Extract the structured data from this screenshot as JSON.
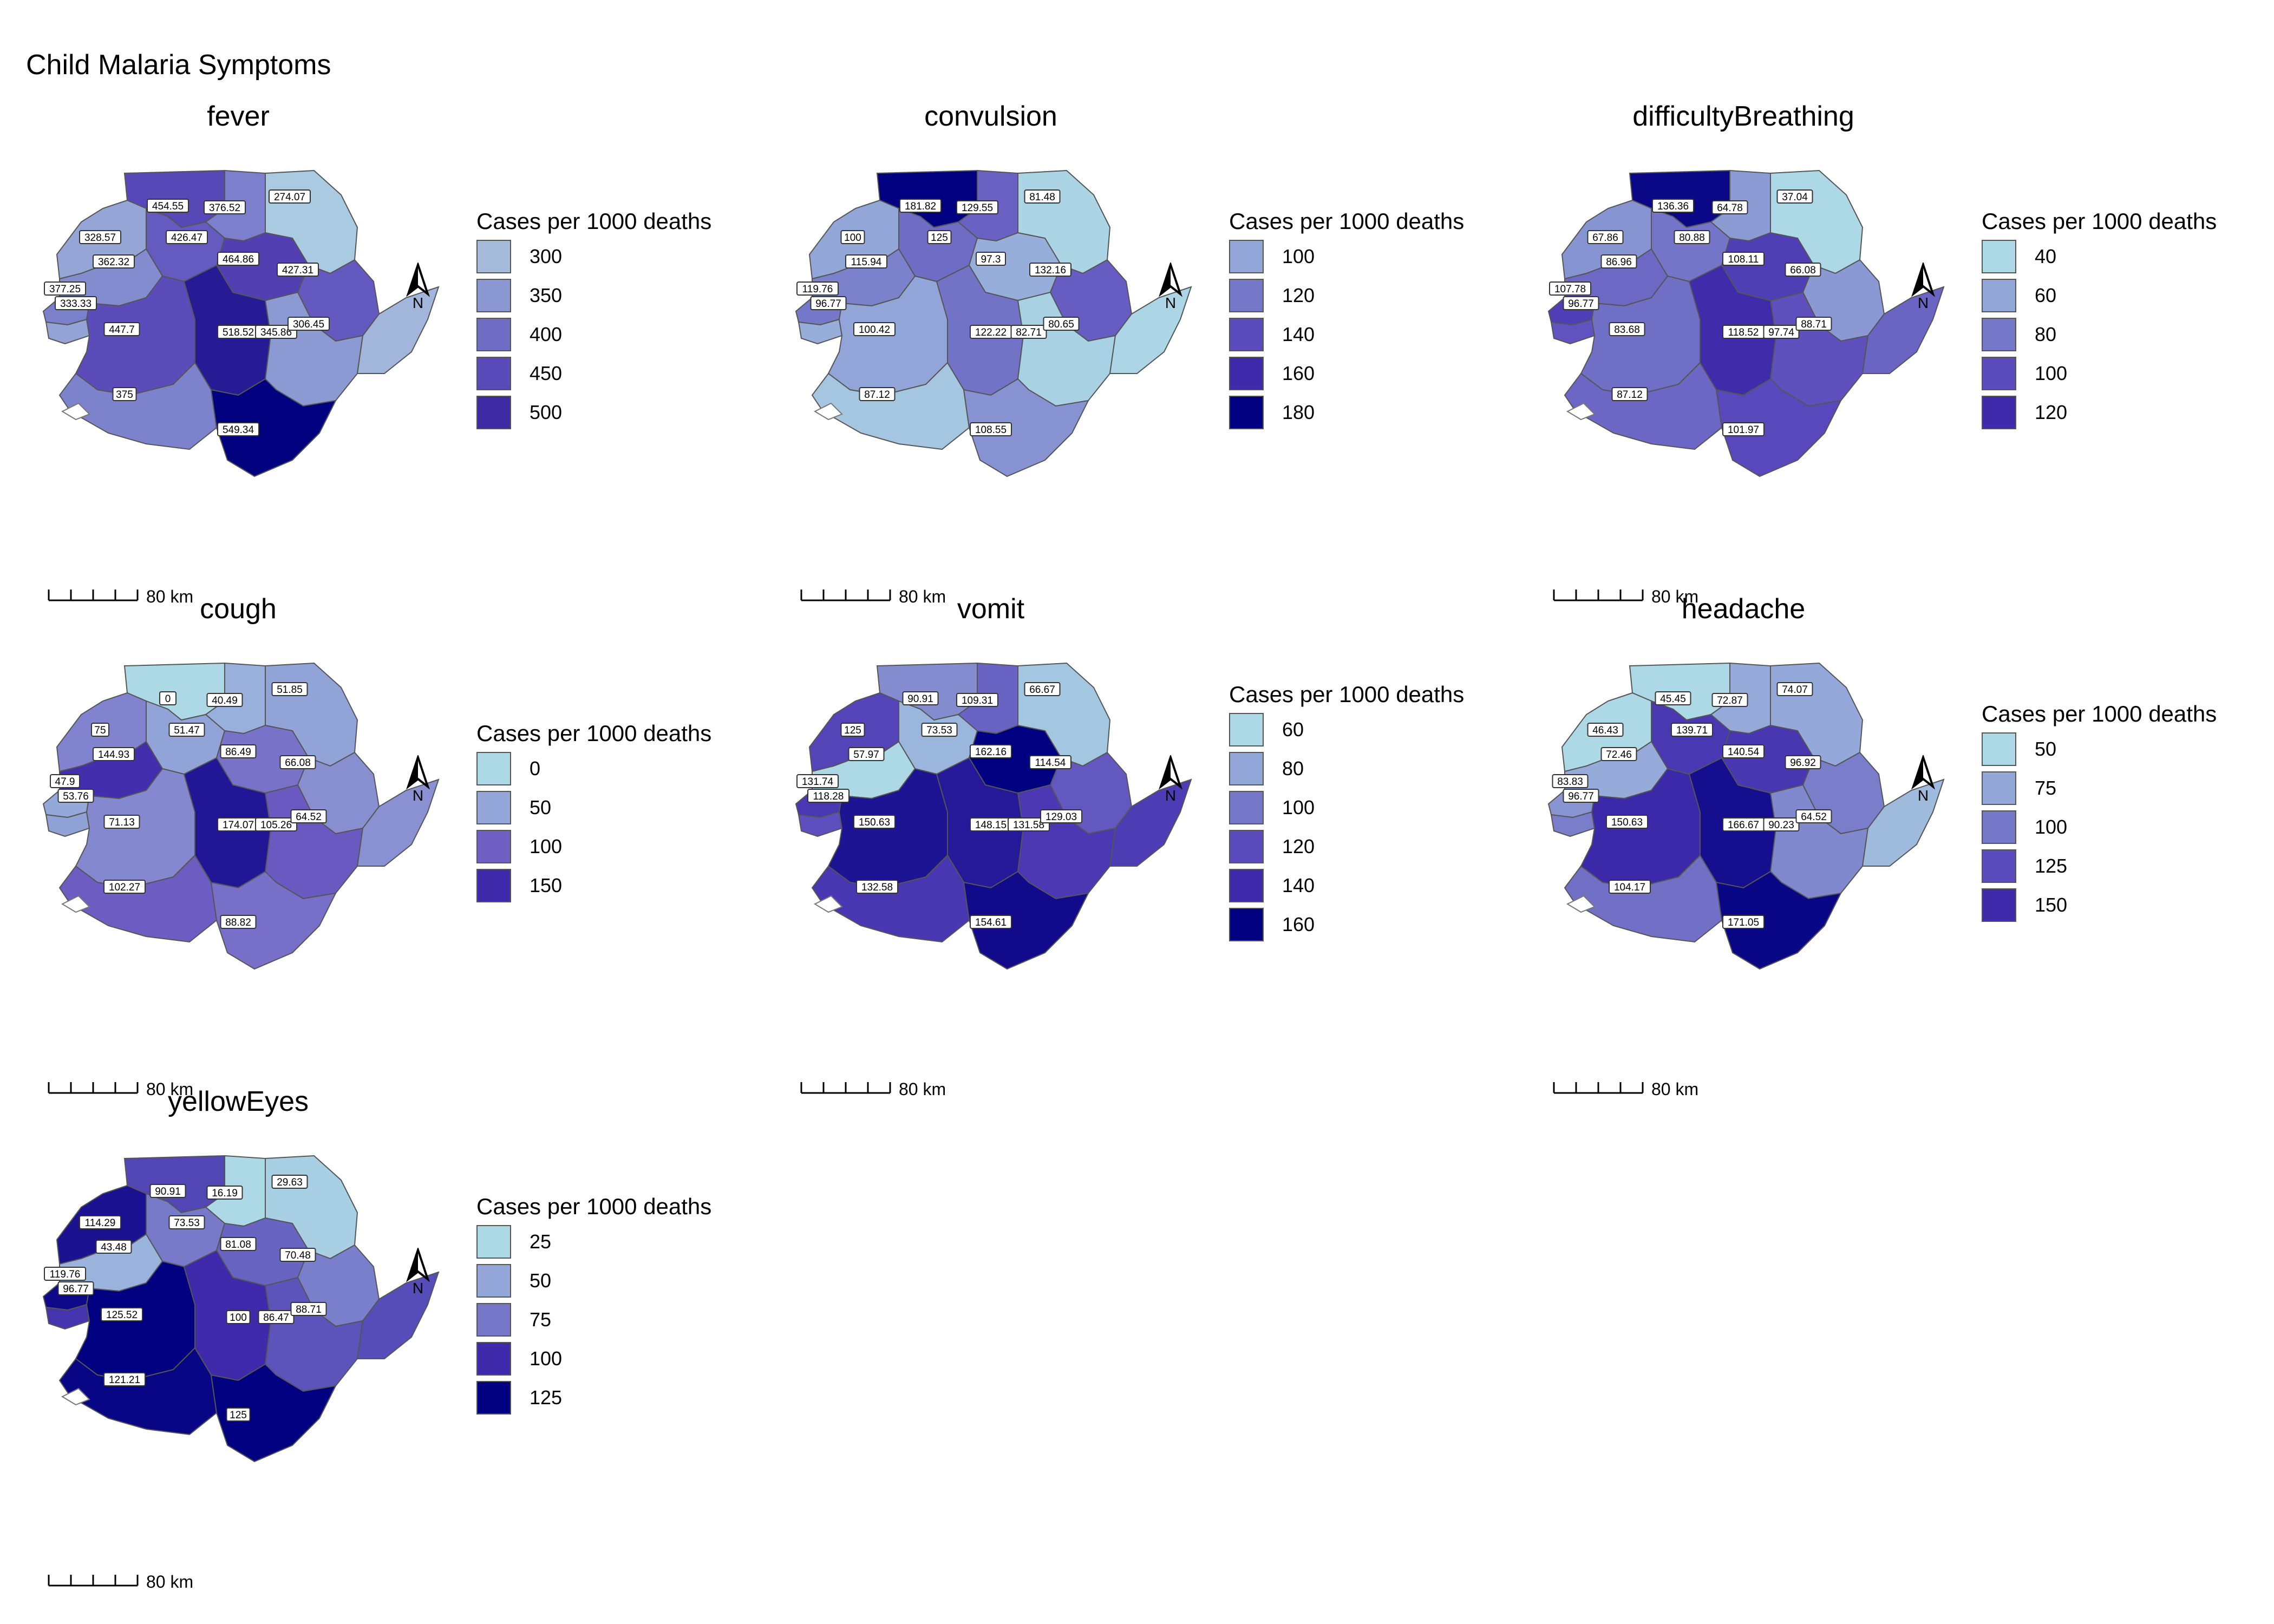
{
  "title": "Child Malaria Symptoms",
  "colors": [
    "#add8e6",
    "#93a6d8",
    "#7577c8",
    "#5c4bbd",
    "#3e2aaa",
    "#000080"
  ],
  "scale_label": "80 km",
  "north_label": "N",
  "legend_title": "Cases per 1000 deaths",
  "panels": [
    {
      "name": "fever",
      "legend": [
        {
          "label": "300",
          "color": "#a4bbdb"
        },
        {
          "label": "350",
          "color": "#8a97d2"
        },
        {
          "label": "400",
          "color": "#6f6cc6"
        },
        {
          "label": "450",
          "color": "#5a4ab9"
        },
        {
          "label": "500",
          "color": "#3e2aa2"
        }
      ],
      "regions": [
        {
          "label": "454.55",
          "value": 454.55
        },
        {
          "label": "376.52",
          "value": 376.52
        },
        {
          "label": "274.07",
          "value": 274.07
        },
        {
          "label": "328.57",
          "value": 328.57
        },
        {
          "label": "426.47",
          "value": 426.47
        },
        {
          "label": "362.32",
          "value": 362.32
        },
        {
          "label": "464.86",
          "value": 464.86
        },
        {
          "label": "427.31",
          "value": 427.31
        },
        {
          "label": "377.25",
          "value": 377.25
        },
        {
          "label": "333.33",
          "value": 333.33
        },
        {
          "label": "447.7",
          "value": 447.7
        },
        {
          "label": "518.52",
          "value": 518.52
        },
        {
          "label": "345.86",
          "value": 345.86
        },
        {
          "label": "306.45",
          "value": 306.45
        },
        {
          "label": "375",
          "value": 375
        },
        {
          "label": "549.34",
          "value": 549.34
        }
      ]
    },
    {
      "name": "convulsion",
      "legend": [
        {
          "label": "100",
          "color": "#93a6d8"
        },
        {
          "label": "120",
          "color": "#7577c8"
        },
        {
          "label": "140",
          "color": "#5c4bbd"
        },
        {
          "label": "160",
          "color": "#3e2aaa"
        },
        {
          "label": "180",
          "color": "#000080"
        }
      ],
      "regions": [
        {
          "label": "181.82",
          "value": 181.82
        },
        {
          "label": "129.55",
          "value": 129.55
        },
        {
          "label": "81.48",
          "value": 81.48
        },
        {
          "label": "100",
          "value": 100
        },
        {
          "label": "125",
          "value": 125
        },
        {
          "label": "115.94",
          "value": 115.94
        },
        {
          "label": "97.3",
          "value": 97.3
        },
        {
          "label": "132.16",
          "value": 132.16
        },
        {
          "label": "119.76",
          "value": 119.76
        },
        {
          "label": "96.77",
          "value": 96.77
        },
        {
          "label": "100.42",
          "value": 100.42
        },
        {
          "label": "122.22",
          "value": 122.22
        },
        {
          "label": "82.71",
          "value": 82.71
        },
        {
          "label": "80.65",
          "value": 80.65
        },
        {
          "label": "87.12",
          "value": 87.12
        },
        {
          "label": "108.55",
          "value": 108.55
        }
      ]
    },
    {
      "name": "difficultyBreathing",
      "legend": [
        {
          "label": "40",
          "color": "#add8e6"
        },
        {
          "label": "60",
          "color": "#93a6d8"
        },
        {
          "label": "80",
          "color": "#7577c8"
        },
        {
          "label": "100",
          "color": "#5c4bbd"
        },
        {
          "label": "120",
          "color": "#3e2aaa"
        }
      ],
      "regions": [
        {
          "label": "136.36",
          "value": 136.36
        },
        {
          "label": "64.78",
          "value": 64.78
        },
        {
          "label": "37.04",
          "value": 37.04
        },
        {
          "label": "67.86",
          "value": 67.86
        },
        {
          "label": "80.88",
          "value": 80.88
        },
        {
          "label": "86.96",
          "value": 86.96
        },
        {
          "label": "108.11",
          "value": 108.11
        },
        {
          "label": "66.08",
          "value": 66.08
        },
        {
          "label": "107.78",
          "value": 107.78
        },
        {
          "label": "96.77",
          "value": 96.77
        },
        {
          "label": "83.68",
          "value": 83.68
        },
        {
          "label": "118.52",
          "value": 118.52
        },
        {
          "label": "97.74",
          "value": 97.74
        },
        {
          "label": "88.71",
          "value": 88.71
        },
        {
          "label": "87.12",
          "value": 87.12
        },
        {
          "label": "101.97",
          "value": 101.97
        }
      ]
    },
    {
      "name": "cough",
      "legend": [
        {
          "label": "0",
          "color": "#add8e6"
        },
        {
          "label": "50",
          "color": "#93a6d8"
        },
        {
          "label": "100",
          "color": "#6f5fc3"
        },
        {
          "label": "150",
          "color": "#3e2aaa"
        }
      ],
      "regions": [
        {
          "label": "0",
          "value": 0
        },
        {
          "label": "40.49",
          "value": 40.49
        },
        {
          "label": "51.85",
          "value": 51.85
        },
        {
          "label": "75",
          "value": 75
        },
        {
          "label": "51.47",
          "value": 51.47
        },
        {
          "label": "144.93",
          "value": 144.93
        },
        {
          "label": "86.49",
          "value": 86.49
        },
        {
          "label": "66.08",
          "value": 66.08
        },
        {
          "label": "47.9",
          "value": 47.9
        },
        {
          "label": "53.76",
          "value": 53.76
        },
        {
          "label": "71.13",
          "value": 71.13
        },
        {
          "label": "174.07",
          "value": 174.07
        },
        {
          "label": "105.26",
          "value": 105.26
        },
        {
          "label": "64.52",
          "value": 64.52
        },
        {
          "label": "102.27",
          "value": 102.27
        },
        {
          "label": "88.82",
          "value": 88.82
        }
      ]
    },
    {
      "name": "vomit",
      "legend": [
        {
          "label": "60",
          "color": "#add8e6"
        },
        {
          "label": "80",
          "color": "#93a6d8"
        },
        {
          "label": "100",
          "color": "#7577c8"
        },
        {
          "label": "120",
          "color": "#5c4bbd"
        },
        {
          "label": "140",
          "color": "#3e2aaa"
        },
        {
          "label": "160",
          "color": "#000080"
        }
      ],
      "regions": [
        {
          "label": "90.91",
          "value": 90.91
        },
        {
          "label": "109.31",
          "value": 109.31
        },
        {
          "label": "66.67",
          "value": 66.67
        },
        {
          "label": "125",
          "value": 125
        },
        {
          "label": "73.53",
          "value": 73.53
        },
        {
          "label": "57.97",
          "value": 57.97
        },
        {
          "label": "162.16",
          "value": 162.16
        },
        {
          "label": "114.54",
          "value": 114.54
        },
        {
          "label": "131.74",
          "value": 131.74
        },
        {
          "label": "118.28",
          "value": 118.28
        },
        {
          "label": "150.63",
          "value": 150.63
        },
        {
          "label": "148.15",
          "value": 148.15
        },
        {
          "label": "131.58",
          "value": 131.58
        },
        {
          "label": "129.03",
          "value": 129.03
        },
        {
          "label": "132.58",
          "value": 132.58
        },
        {
          "label": "154.61",
          "value": 154.61
        }
      ]
    },
    {
      "name": "headache",
      "legend": [
        {
          "label": "50",
          "color": "#add8e6"
        },
        {
          "label": "75",
          "color": "#93a6d8"
        },
        {
          "label": "100",
          "color": "#7577c8"
        },
        {
          "label": "125",
          "color": "#5c4bbd"
        },
        {
          "label": "150",
          "color": "#3e2aaa"
        }
      ],
      "regions": [
        {
          "label": "45.45",
          "value": 45.45
        },
        {
          "label": "72.87",
          "value": 72.87
        },
        {
          "label": "74.07",
          "value": 74.07
        },
        {
          "label": "46.43",
          "value": 46.43
        },
        {
          "label": "139.71",
          "value": 139.71
        },
        {
          "label": "72.46",
          "value": 72.46
        },
        {
          "label": "140.54",
          "value": 140.54
        },
        {
          "label": "96.92",
          "value": 96.92
        },
        {
          "label": "83.83",
          "value": 83.83
        },
        {
          "label": "96.77",
          "value": 96.77
        },
        {
          "label": "150.63",
          "value": 150.63
        },
        {
          "label": "166.67",
          "value": 166.67
        },
        {
          "label": "90.23",
          "value": 90.23
        },
        {
          "label": "64.52",
          "value": 64.52
        },
        {
          "label": "104.17",
          "value": 104.17
        },
        {
          "label": "171.05",
          "value": 171.05
        }
      ]
    },
    {
      "name": "yellowEyes",
      "legend": [
        {
          "label": "25",
          "color": "#add8e6"
        },
        {
          "label": "50",
          "color": "#93a6d8"
        },
        {
          "label": "75",
          "color": "#7577c8"
        },
        {
          "label": "100",
          "color": "#3e2aaa"
        },
        {
          "label": "125",
          "color": "#000080"
        }
      ],
      "regions": [
        {
          "label": "90.91",
          "value": 90.91
        },
        {
          "label": "16.19",
          "value": 16.19
        },
        {
          "label": "29.63",
          "value": 29.63
        },
        {
          "label": "114.29",
          "value": 114.29
        },
        {
          "label": "73.53",
          "value": 73.53
        },
        {
          "label": "43.48",
          "value": 43.48
        },
        {
          "label": "81.08",
          "value": 81.08
        },
        {
          "label": "70.48",
          "value": 70.48
        },
        {
          "label": "119.76",
          "value": 119.76
        },
        {
          "label": "96.77",
          "value": 96.77
        },
        {
          "label": "125.52",
          "value": 125.52
        },
        {
          "label": "100",
          "value": 100
        },
        {
          "label": "86.47",
          "value": 86.47
        },
        {
          "label": "88.71",
          "value": 88.71
        },
        {
          "label": "121.21",
          "value": 121.21
        },
        {
          "label": "125",
          "value": 125
        }
      ]
    }
  ]
}
